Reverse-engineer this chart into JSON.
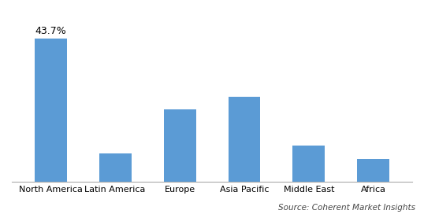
{
  "categories": [
    "North America",
    "Latin America",
    "Europe",
    "Asia Pacific",
    "Middle East",
    "Africa"
  ],
  "values": [
    43.7,
    8.5,
    22.0,
    26.0,
    11.0,
    7.0
  ],
  "bar_color": "#5B9BD5",
  "annotation_text": "43.7%",
  "annotation_bar_index": 0,
  "source_text": "Source: Coherent Market Insights",
  "ylim": [
    0,
    52
  ],
  "background_color": "#FFFFFF",
  "bar_width": 0.5,
  "annotation_fontsize": 9,
  "tick_fontsize": 8,
  "source_fontsize": 7.5
}
